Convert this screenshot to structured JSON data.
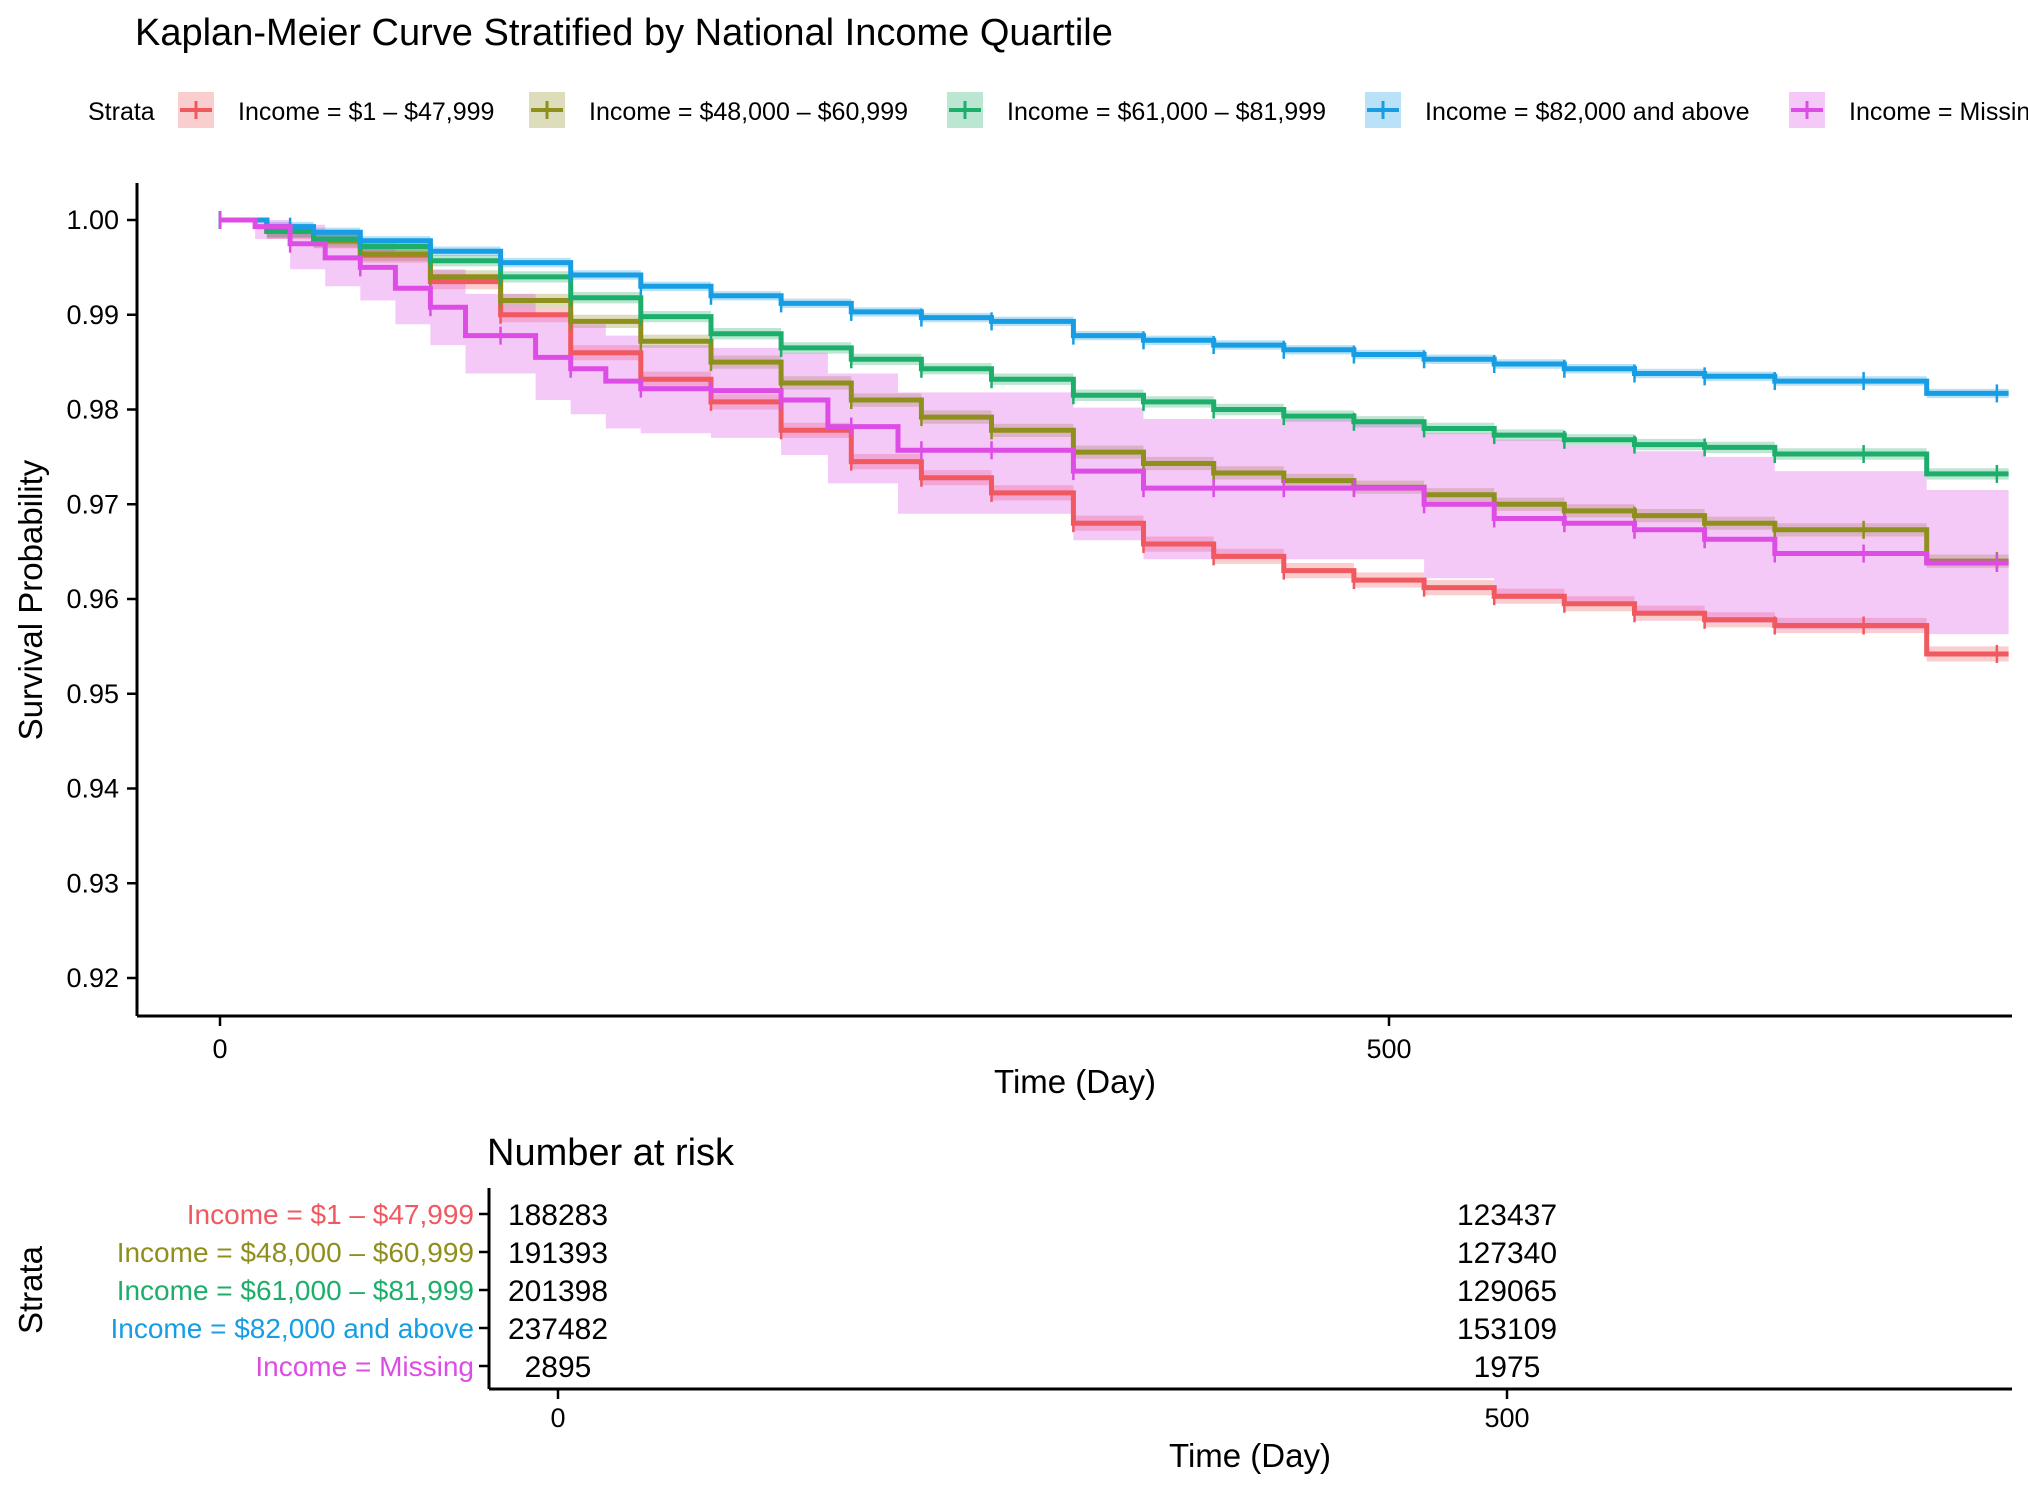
{
  "chart_data": {
    "type": "line",
    "subtype": "kaplan-meier survival curve with confidence bands",
    "title": "Kaplan-Meier Curve Stratified by National Income Quartile",
    "legend_title": "Strata",
    "legend_position": "top",
    "xlabel": "Time (Day)",
    "ylabel": "Survival Probability",
    "xlim": [
      -35,
      765
    ],
    "ylim": [
      0.9165,
      1.0035
    ],
    "x_ticks": [
      0,
      500
    ],
    "y_ticks": [
      0.92,
      0.93,
      0.94,
      0.95,
      0.96,
      0.97,
      0.98,
      0.99,
      1.0
    ],
    "y_tick_labels": [
      "0.92",
      "0.93",
      "0.94",
      "0.95",
      "0.96",
      "0.97",
      "0.98",
      "0.99",
      "1.00"
    ],
    "grid": false,
    "series": [
      {
        "name": "Income = $1 – $47,999",
        "color": "#F0595F",
        "points": [
          [
            0,
            1.0
          ],
          [
            20,
            0.9988
          ],
          [
            40,
            0.9978
          ],
          [
            60,
            0.9963
          ],
          [
            90,
            0.9935
          ],
          [
            120,
            0.99
          ],
          [
            150,
            0.986
          ],
          [
            180,
            0.9832
          ],
          [
            210,
            0.9808
          ],
          [
            240,
            0.9778
          ],
          [
            270,
            0.9745
          ],
          [
            300,
            0.9728
          ],
          [
            330,
            0.9712
          ],
          [
            365,
            0.968
          ],
          [
            395,
            0.9658
          ],
          [
            425,
            0.9645
          ],
          [
            455,
            0.963
          ],
          [
            485,
            0.962
          ],
          [
            515,
            0.9612
          ],
          [
            545,
            0.9603
          ],
          [
            575,
            0.9595
          ],
          [
            605,
            0.9585
          ],
          [
            635,
            0.9578
          ],
          [
            665,
            0.9572
          ],
          [
            730,
            0.9542
          ],
          [
            765,
            0.9542
          ]
        ],
        "ci_halfwidth": 0.0008,
        "censor_times": [
          0,
          30,
          60,
          90,
          120,
          150,
          180,
          210,
          240,
          270,
          300,
          330,
          365,
          395,
          425,
          455,
          485,
          515,
          545,
          575,
          605,
          635,
          665,
          703,
          760
        ]
      },
      {
        "name": "Income = $48,000 – $60,999",
        "color": "#8F8F1E",
        "points": [
          [
            0,
            1.0
          ],
          [
            20,
            0.9988
          ],
          [
            40,
            0.9978
          ],
          [
            60,
            0.9964
          ],
          [
            90,
            0.994
          ],
          [
            120,
            0.9915
          ],
          [
            150,
            0.9893
          ],
          [
            180,
            0.9872
          ],
          [
            210,
            0.985
          ],
          [
            240,
            0.9828
          ],
          [
            270,
            0.981
          ],
          [
            300,
            0.9792
          ],
          [
            330,
            0.9778
          ],
          [
            365,
            0.9755
          ],
          [
            395,
            0.9743
          ],
          [
            425,
            0.9733
          ],
          [
            455,
            0.9725
          ],
          [
            485,
            0.9718
          ],
          [
            515,
            0.971
          ],
          [
            545,
            0.97
          ],
          [
            575,
            0.9693
          ],
          [
            605,
            0.9688
          ],
          [
            635,
            0.968
          ],
          [
            665,
            0.9673
          ],
          [
            730,
            0.964
          ],
          [
            765,
            0.964
          ]
        ],
        "ci_halfwidth": 0.0007,
        "censor_times": [
          0,
          30,
          60,
          90,
          120,
          150,
          180,
          210,
          240,
          270,
          300,
          330,
          365,
          395,
          425,
          455,
          485,
          515,
          545,
          575,
          605,
          635,
          665,
          703,
          760
        ]
      },
      {
        "name": "Income = $61,000 – $81,999",
        "color": "#1EAE6B",
        "points": [
          [
            0,
            1.0
          ],
          [
            20,
            0.9988
          ],
          [
            40,
            0.998
          ],
          [
            60,
            0.9972
          ],
          [
            90,
            0.9957
          ],
          [
            120,
            0.994
          ],
          [
            150,
            0.9918
          ],
          [
            180,
            0.9898
          ],
          [
            210,
            0.988
          ],
          [
            240,
            0.9865
          ],
          [
            270,
            0.9853
          ],
          [
            300,
            0.9843
          ],
          [
            330,
            0.9832
          ],
          [
            365,
            0.9815
          ],
          [
            395,
            0.9808
          ],
          [
            425,
            0.98
          ],
          [
            455,
            0.9793
          ],
          [
            485,
            0.9787
          ],
          [
            515,
            0.978
          ],
          [
            545,
            0.9773
          ],
          [
            575,
            0.9768
          ],
          [
            605,
            0.9763
          ],
          [
            635,
            0.976
          ],
          [
            665,
            0.9753
          ],
          [
            730,
            0.9732
          ],
          [
            765,
            0.9732
          ]
        ],
        "ci_halfwidth": 0.0006,
        "censor_times": [
          0,
          30,
          60,
          90,
          120,
          150,
          180,
          210,
          240,
          270,
          300,
          330,
          365,
          395,
          425,
          455,
          485,
          515,
          545,
          575,
          605,
          635,
          665,
          703,
          760
        ]
      },
      {
        "name": "Income = $82,000 and above",
        "color": "#169DE4",
        "points": [
          [
            0,
            1.0
          ],
          [
            20,
            0.9993
          ],
          [
            40,
            0.9987
          ],
          [
            60,
            0.9978
          ],
          [
            90,
            0.9967
          ],
          [
            120,
            0.9955
          ],
          [
            150,
            0.9942
          ],
          [
            180,
            0.993
          ],
          [
            210,
            0.992
          ],
          [
            240,
            0.9912
          ],
          [
            270,
            0.9903
          ],
          [
            300,
            0.9897
          ],
          [
            330,
            0.9893
          ],
          [
            365,
            0.9878
          ],
          [
            395,
            0.9873
          ],
          [
            425,
            0.9868
          ],
          [
            455,
            0.9863
          ],
          [
            485,
            0.9858
          ],
          [
            515,
            0.9853
          ],
          [
            545,
            0.9848
          ],
          [
            575,
            0.9843
          ],
          [
            605,
            0.9838
          ],
          [
            635,
            0.9835
          ],
          [
            665,
            0.983
          ],
          [
            730,
            0.9817
          ],
          [
            765,
            0.9817
          ]
        ],
        "ci_halfwidth": 0.0005,
        "censor_times": [
          0,
          30,
          60,
          90,
          120,
          150,
          180,
          210,
          240,
          270,
          300,
          330,
          365,
          395,
          425,
          455,
          485,
          515,
          545,
          575,
          605,
          635,
          665,
          703,
          760
        ]
      },
      {
        "name": "Income = Missing",
        "color": "#DE4CE6",
        "points": [
          [
            0,
            1.0
          ],
          [
            15,
            0.9993
          ],
          [
            30,
            0.9975
          ],
          [
            45,
            0.996
          ],
          [
            60,
            0.995
          ],
          [
            75,
            0.9928
          ],
          [
            90,
            0.9908
          ],
          [
            105,
            0.9878
          ],
          [
            120,
            0.9878
          ],
          [
            135,
            0.9855
          ],
          [
            150,
            0.9843
          ],
          [
            165,
            0.983
          ],
          [
            180,
            0.9822
          ],
          [
            210,
            0.982
          ],
          [
            240,
            0.981
          ],
          [
            260,
            0.9782
          ],
          [
            290,
            0.9757
          ],
          [
            330,
            0.9757
          ],
          [
            365,
            0.9735
          ],
          [
            395,
            0.9717
          ],
          [
            425,
            0.9717
          ],
          [
            455,
            0.9717
          ],
          [
            485,
            0.9717
          ],
          [
            515,
            0.97
          ],
          [
            545,
            0.9685
          ],
          [
            575,
            0.968
          ],
          [
            605,
            0.9673
          ],
          [
            635,
            0.9663
          ],
          [
            665,
            0.9648
          ],
          [
            730,
            0.9638
          ],
          [
            765,
            0.9638
          ]
        ],
        "ci_lower": [
          [
            0,
            1.0
          ],
          [
            15,
            0.998
          ],
          [
            30,
            0.9948
          ],
          [
            45,
            0.993
          ],
          [
            60,
            0.9915
          ],
          [
            75,
            0.989
          ],
          [
            90,
            0.9868
          ],
          [
            105,
            0.9838
          ],
          [
            120,
            0.9838
          ],
          [
            135,
            0.981
          ],
          [
            150,
            0.9795
          ],
          [
            165,
            0.978
          ],
          [
            180,
            0.9775
          ],
          [
            210,
            0.977
          ],
          [
            240,
            0.9752
          ],
          [
            260,
            0.9722
          ],
          [
            290,
            0.969
          ],
          [
            330,
            0.969
          ],
          [
            365,
            0.9662
          ],
          [
            395,
            0.9642
          ],
          [
            425,
            0.9642
          ],
          [
            455,
            0.9642
          ],
          [
            485,
            0.9642
          ],
          [
            515,
            0.9622
          ],
          [
            545,
            0.96
          ],
          [
            575,
            0.9597
          ],
          [
            605,
            0.9587
          ],
          [
            635,
            0.9575
          ],
          [
            665,
            0.9568
          ],
          [
            730,
            0.9563
          ],
          [
            765,
            0.9563
          ]
        ],
        "ci_upper": [
          [
            0,
            1.0
          ],
          [
            15,
            1.0
          ],
          [
            30,
            0.9995
          ],
          [
            45,
            0.9985
          ],
          [
            60,
            0.998
          ],
          [
            75,
            0.9965
          ],
          [
            90,
            0.9948
          ],
          [
            105,
            0.9922
          ],
          [
            120,
            0.9922
          ],
          [
            135,
            0.99
          ],
          [
            150,
            0.989
          ],
          [
            165,
            0.9878
          ],
          [
            180,
            0.9868
          ],
          [
            210,
            0.9865
          ],
          [
            240,
            0.986
          ],
          [
            260,
            0.9838
          ],
          [
            290,
            0.9818
          ],
          [
            330,
            0.9818
          ],
          [
            365,
            0.9802
          ],
          [
            395,
            0.979
          ],
          [
            425,
            0.979
          ],
          [
            455,
            0.979
          ],
          [
            485,
            0.979
          ],
          [
            515,
            0.9775
          ],
          [
            545,
            0.9768
          ],
          [
            575,
            0.9762
          ],
          [
            605,
            0.9756
          ],
          [
            635,
            0.975
          ],
          [
            665,
            0.9735
          ],
          [
            730,
            0.9715
          ],
          [
            765,
            0.9715
          ]
        ],
        "censor_times": [
          0,
          30,
          60,
          90,
          120,
          150,
          180,
          210,
          240,
          270,
          300,
          330,
          365,
          395,
          425,
          455,
          485,
          515,
          545,
          575,
          605,
          635,
          665,
          703,
          760
        ]
      }
    ],
    "risk_table": {
      "title": "Number at risk",
      "ylabel": "Strata",
      "xlabel": "Time (Day)",
      "x_ticks": [
        0,
        500
      ],
      "rows": [
        {
          "label": "Income = $1 – $47,999",
          "color": "#F0595F",
          "values": [
            "188283",
            "123437"
          ]
        },
        {
          "label": "Income = $48,000 – $60,999",
          "color": "#8F8F1E",
          "values": [
            "191393",
            "127340"
          ]
        },
        {
          "label": "Income = $61,000 – $81,999",
          "color": "#1EAE6B",
          "values": [
            "201398",
            "129065"
          ]
        },
        {
          "label": "Income = $82,000 and above",
          "color": "#169DE4",
          "values": [
            "237482",
            "153109"
          ]
        },
        {
          "label": "Income = Missing",
          "color": "#DE4CE6",
          "values": [
            "2895",
            "1975"
          ]
        }
      ]
    }
  }
}
